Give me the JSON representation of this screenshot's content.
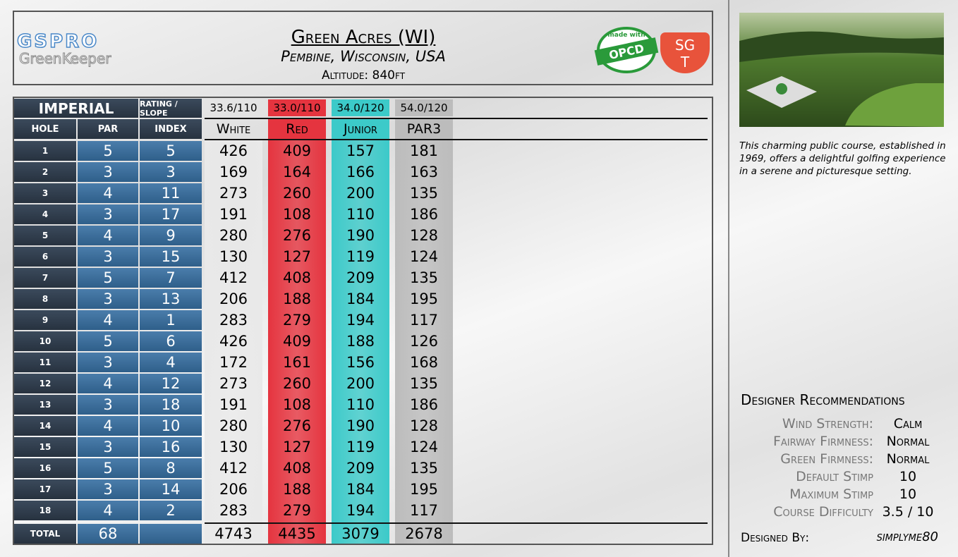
{
  "header": {
    "logo": "GSPRO",
    "logo_sub": "GreenKeeper",
    "title": "Green Acres (WI)",
    "location": "Pembine, Wisconsin, USA",
    "altitude": "Altitude: 840ft",
    "badge_top": "made with",
    "badge": "OPCD",
    "sgt_top": "SG",
    "sgt_bottom": "T"
  },
  "table": {
    "unit": "IMPERIAL",
    "rating_label": "RATING / SLOPE",
    "columns": [
      "HOLE",
      "PAR",
      "INDEX"
    ],
    "total_label": "TOTAL",
    "holes": [
      1,
      2,
      3,
      4,
      5,
      6,
      7,
      8,
      9,
      10,
      11,
      12,
      13,
      14,
      15,
      16,
      17,
      18
    ],
    "par": [
      5,
      3,
      4,
      3,
      4,
      3,
      5,
      3,
      4,
      5,
      3,
      4,
      3,
      4,
      3,
      5,
      3,
      4
    ],
    "par_total": 68,
    "index": [
      5,
      3,
      11,
      17,
      9,
      15,
      7,
      13,
      1,
      6,
      4,
      12,
      18,
      10,
      16,
      8,
      14,
      2
    ],
    "tees": [
      {
        "name": "White",
        "rating": "33.6/110",
        "color": "#e9e9e9",
        "yards": [
          426,
          169,
          273,
          191,
          280,
          130,
          412,
          206,
          283,
          426,
          172,
          273,
          191,
          280,
          130,
          412,
          206,
          283
        ],
        "total": 4743
      },
      {
        "name": "Red",
        "rating": "33.0/110",
        "color": "#e5343f",
        "yards": [
          409,
          164,
          260,
          108,
          276,
          127,
          408,
          188,
          279,
          409,
          161,
          260,
          108,
          276,
          127,
          408,
          188,
          279
        ],
        "total": 4435
      },
      {
        "name": "Junior",
        "rating": "34.0/120",
        "color": "#3ccac9",
        "yards": [
          157,
          166,
          200,
          110,
          190,
          119,
          209,
          184,
          194,
          188,
          156,
          200,
          110,
          190,
          119,
          209,
          184,
          194
        ],
        "total": 3079
      },
      {
        "name": "PAR3",
        "rating": "54.0/120",
        "color": "#bcbcbc",
        "yards": [
          181,
          163,
          135,
          186,
          128,
          124,
          135,
          195,
          117,
          126,
          168,
          135,
          186,
          128,
          124,
          135,
          195,
          117
        ],
        "total": 2678
      }
    ]
  },
  "side": {
    "description": "This charming public course, established in 1969, offers a delightful golfing experience in a serene and picturesque setting.",
    "rec_title": "Designer Recommendations",
    "recs": [
      {
        "label": "Wind Strength:",
        "value": "Calm"
      },
      {
        "label": "Fairway Firmness:",
        "value": "Normal"
      },
      {
        "label": "Green Firmness:",
        "value": "Normal"
      },
      {
        "label": "Default Stimp",
        "value": "10"
      },
      {
        "label": "Maximum Stimp",
        "value": "10"
      },
      {
        "label": "Course Difficulty",
        "value": "3.5 / 10"
      }
    ],
    "designed_by_label": "Designed By:",
    "designer": "simplyme80"
  }
}
